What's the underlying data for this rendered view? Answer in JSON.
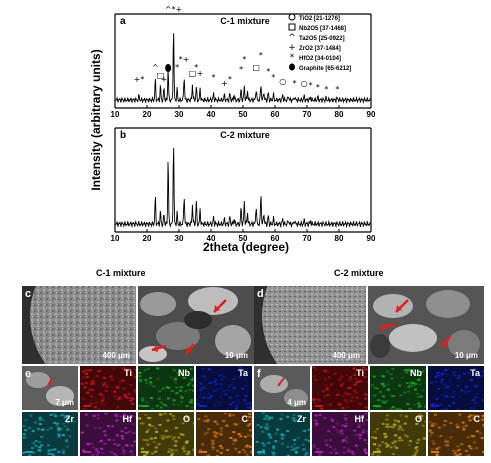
{
  "chart_data": [
    {
      "type": "line",
      "panel_label": "a",
      "title": "C-1 mixture",
      "xlabel": "2theta (degree)",
      "ylabel": "Intensity (arbitrary units)",
      "xlim": [
        10,
        90
      ],
      "xticks": [
        10,
        20,
        30,
        40,
        50,
        60,
        70,
        80,
        90
      ],
      "grid": false,
      "legend_position": "top-right",
      "legend": [
        {
          "symbol": "circle-open",
          "label": "TiO2 [21-1276]"
        },
        {
          "symbol": "square-open",
          "label": "Nb2O5 [37-1468]"
        },
        {
          "symbol": "caret",
          "label": "Ta2O5 [25-0922]"
        },
        {
          "symbol": "plus",
          "label": "ZrO2 [37-1484]"
        },
        {
          "symbol": "asterisk",
          "label": "HfO2 [34-0104]"
        },
        {
          "symbol": "dot-filled",
          "label": "Graphite [65-6212]"
        }
      ],
      "peaks": [
        {
          "x": 17.5,
          "y": 0.06
        },
        {
          "x": 22.6,
          "y": 0.28
        },
        {
          "x": 24.2,
          "y": 0.2
        },
        {
          "x": 25.3,
          "y": 0.17
        },
        {
          "x": 26.6,
          "y": 0.45
        },
        {
          "x": 28.3,
          "y": 1.0
        },
        {
          "x": 29.4,
          "y": 0.15
        },
        {
          "x": 31.6,
          "y": 0.33
        },
        {
          "x": 34.2,
          "y": 0.22
        },
        {
          "x": 35.4,
          "y": 0.18
        },
        {
          "x": 36.6,
          "y": 0.16
        },
        {
          "x": 40.8,
          "y": 0.09
        },
        {
          "x": 44.2,
          "y": 0.07
        },
        {
          "x": 45.9,
          "y": 0.09
        },
        {
          "x": 47.2,
          "y": 0.08
        },
        {
          "x": 49.4,
          "y": 0.15
        },
        {
          "x": 50.4,
          "y": 0.2
        },
        {
          "x": 51.4,
          "y": 0.14
        },
        {
          "x": 54.1,
          "y": 0.15
        },
        {
          "x": 55.6,
          "y": 0.22
        },
        {
          "x": 56.5,
          "y": 0.12
        },
        {
          "x": 57.9,
          "y": 0.1
        },
        {
          "x": 59.5,
          "y": 0.08
        },
        {
          "x": 62.4,
          "y": 0.07
        },
        {
          "x": 64.2,
          "y": 0.06
        },
        {
          "x": 66.1,
          "y": 0.05
        },
        {
          "x": 69.1,
          "y": 0.05
        },
        {
          "x": 71.1,
          "y": 0.04
        },
        {
          "x": 73.4,
          "y": 0.04
        },
        {
          "x": 76.0,
          "y": 0.03
        },
        {
          "x": 79.5,
          "y": 0.03
        }
      ]
    },
    {
      "type": "line",
      "panel_label": "b",
      "title": "C-2 mixture",
      "xlabel": "2theta (degree)",
      "ylabel": "Intensity (arbitrary units)",
      "xlim": [
        10,
        90
      ],
      "xticks": [
        10,
        20,
        30,
        40,
        50,
        60,
        70,
        80,
        90
      ],
      "grid": false,
      "peaks": [
        {
          "x": 22.6,
          "y": 0.32
        },
        {
          "x": 24.2,
          "y": 0.15
        },
        {
          "x": 25.3,
          "y": 0.12
        },
        {
          "x": 26.6,
          "y": 0.82
        },
        {
          "x": 28.3,
          "y": 1.0
        },
        {
          "x": 29.4,
          "y": 0.13
        },
        {
          "x": 31.6,
          "y": 0.35
        },
        {
          "x": 34.2,
          "y": 0.24
        },
        {
          "x": 35.4,
          "y": 0.28
        },
        {
          "x": 36.6,
          "y": 0.18
        },
        {
          "x": 40.8,
          "y": 0.08
        },
        {
          "x": 44.2,
          "y": 0.06
        },
        {
          "x": 45.9,
          "y": 0.09
        },
        {
          "x": 47.2,
          "y": 0.07
        },
        {
          "x": 49.4,
          "y": 0.2
        },
        {
          "x": 50.4,
          "y": 0.28
        },
        {
          "x": 51.4,
          "y": 0.15
        },
        {
          "x": 54.1,
          "y": 0.22
        },
        {
          "x": 55.6,
          "y": 0.38
        },
        {
          "x": 56.5,
          "y": 0.14
        },
        {
          "x": 57.9,
          "y": 0.1
        },
        {
          "x": 59.5,
          "y": 0.07
        },
        {
          "x": 62.4,
          "y": 0.06
        },
        {
          "x": 64.2,
          "y": 0.05
        },
        {
          "x": 66.1,
          "y": 0.05
        },
        {
          "x": 69.1,
          "y": 0.04
        },
        {
          "x": 71.1,
          "y": 0.04
        }
      ]
    }
  ],
  "sem": {
    "c1_title": "C-1 mixture",
    "c2_title": "C-2 mixture",
    "panels": {
      "c": {
        "label": "c",
        "scale": "400 μm",
        "scale2": "10 μm"
      },
      "d": {
        "label": "d",
        "scale": "400 μm",
        "scale2": "10 μm"
      },
      "e": {
        "label": "e",
        "scale": "7 μm"
      },
      "f": {
        "label": "f",
        "scale": "4 μm"
      }
    },
    "element_maps": [
      {
        "symbol": "Ti",
        "color": "#c0141c"
      },
      {
        "symbol": "Nb",
        "color": "#1f9a2c"
      },
      {
        "symbol": "Ta",
        "color": "#1422b4"
      },
      {
        "symbol": "Zr",
        "color": "#16a7b0"
      },
      {
        "symbol": "Hf",
        "color": "#a626ac"
      },
      {
        "symbol": "O",
        "color": "#b9aa1c"
      },
      {
        "symbol": "C",
        "color": "#d17a18"
      }
    ],
    "arrow_color": "#e0201e"
  }
}
